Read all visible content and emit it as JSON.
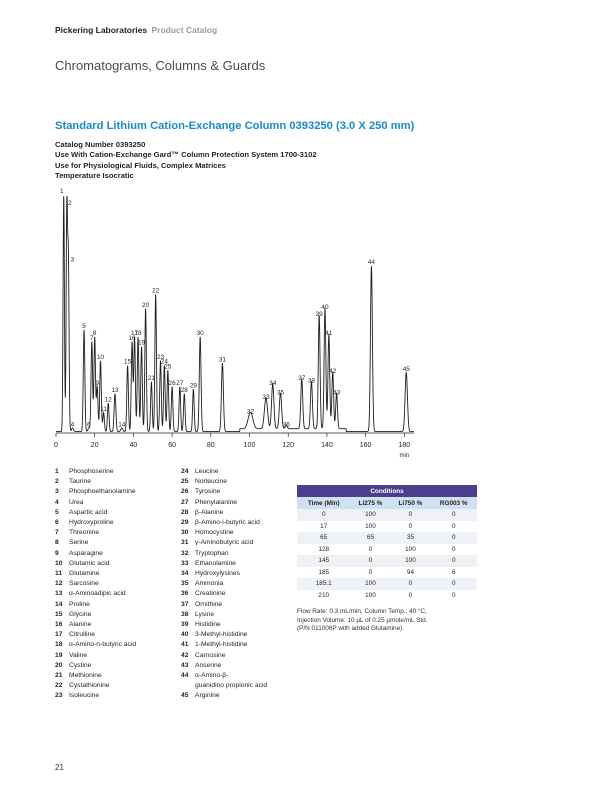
{
  "header": {
    "company": "Pickering Laboratories",
    "catalog": "Product Catalog"
  },
  "section_title": "Chromatograms, Columns & Guards",
  "column_title": "Standard Lithium Cation-Exchange Column 0393250 (3.0 X 250 mm)",
  "info_lines": [
    "Catalog Number 0393250",
    "Use With Cation-Exchange Gard™ Column Protection System 1700-3102",
    "Use for Physiological Fluids, Complex Matrices",
    "Temperature Isocratic"
  ],
  "chart_data": {
    "type": "line",
    "x_unit": "min",
    "xlim": [
      0,
      185
    ],
    "x_ticks": [
      0,
      20,
      40,
      60,
      80,
      100,
      120,
      140,
      160,
      180
    ],
    "ylim": [
      0,
      100
    ],
    "grid": false,
    "line_color": "#231f20",
    "peaks": [
      {
        "label": "1",
        "t": 4.0,
        "h": 100,
        "w": 0.35
      },
      {
        "label": "2",
        "t": 5.6,
        "h": 95,
        "w": 0.35
      },
      {
        "label": "3",
        "t": 6.4,
        "h": 71,
        "w": 0.35
      },
      {
        "label": "4",
        "t": 8.5,
        "h": 1.5,
        "w": 0.5
      },
      {
        "label": "5",
        "t": 14.5,
        "h": 43,
        "w": 0.4
      },
      {
        "label": "6",
        "t": 17.0,
        "h": 1.5,
        "w": 0.5
      },
      {
        "label": "7",
        "t": 18.5,
        "h": 38,
        "w": 0.4
      },
      {
        "label": "8",
        "t": 20.0,
        "h": 40,
        "w": 0.4
      },
      {
        "label": "9",
        "t": 21.3,
        "h": 19,
        "w": 0.4
      },
      {
        "label": "10",
        "t": 23.0,
        "h": 30,
        "w": 0.4
      },
      {
        "label": "11",
        "t": 24.6,
        "h": 8,
        "w": 0.4
      },
      {
        "label": "12",
        "t": 27.0,
        "h": 12,
        "w": 0.4
      },
      {
        "label": "13",
        "t": 30.5,
        "h": 16,
        "w": 0.45
      },
      {
        "label": "14",
        "t": 34.0,
        "h": 1.5,
        "w": 0.5
      },
      {
        "label": "15",
        "t": 37.0,
        "h": 28,
        "w": 0.4
      },
      {
        "label": "16",
        "t": 39.3,
        "h": 38,
        "w": 0.4
      },
      {
        "label": "17",
        "t": 40.6,
        "h": 40,
        "w": 0.4
      },
      {
        "label": "18",
        "t": 42.4,
        "h": 40,
        "w": 0.4
      },
      {
        "label": "19",
        "t": 44.2,
        "h": 36,
        "w": 0.4
      },
      {
        "label": "20",
        "t": 46.3,
        "h": 52,
        "w": 0.4
      },
      {
        "label": "21",
        "t": 49.3,
        "h": 21,
        "w": 0.4
      },
      {
        "label": "22",
        "t": 51.5,
        "h": 58,
        "w": 0.4
      },
      {
        "label": "23",
        "t": 54.0,
        "h": 30,
        "w": 0.4
      },
      {
        "label": "24",
        "t": 56.0,
        "h": 28,
        "w": 0.4
      },
      {
        "label": "25",
        "t": 57.8,
        "h": 26,
        "w": 0.4
      },
      {
        "label": "26",
        "t": 60.0,
        "h": 19,
        "w": 0.4
      },
      {
        "label": "27",
        "t": 64.0,
        "h": 19,
        "w": 0.4
      },
      {
        "label": "28",
        "t": 66.3,
        "h": 16,
        "w": 0.4
      },
      {
        "label": "29",
        "t": 71.0,
        "h": 18,
        "w": 0.4
      },
      {
        "label": "30",
        "t": 74.5,
        "h": 40,
        "w": 0.45
      },
      {
        "label": "31",
        "t": 86.0,
        "h": 29,
        "w": 0.5
      },
      {
        "label": "32",
        "t": 100.5,
        "h": 7,
        "w": 1.2
      },
      {
        "label": "33",
        "t": 108.5,
        "h": 13,
        "w": 0.8
      },
      {
        "label": "34",
        "t": 112.0,
        "h": 19,
        "w": 0.6
      },
      {
        "label": "35",
        "t": 116.0,
        "h": 15,
        "w": 0.6
      },
      {
        "label": "36",
        "t": 119.0,
        "h": 1.5,
        "w": 0.5
      },
      {
        "label": "37",
        "t": 127.0,
        "h": 21,
        "w": 0.5
      },
      {
        "label": "38",
        "t": 132.0,
        "h": 20,
        "w": 0.5
      },
      {
        "label": "39",
        "t": 136.0,
        "h": 48,
        "w": 0.45
      },
      {
        "label": "40",
        "t": 139.0,
        "h": 51,
        "w": 0.45
      },
      {
        "label": "41",
        "t": 141.0,
        "h": 40,
        "w": 0.45
      },
      {
        "label": "42",
        "t": 143.0,
        "h": 24,
        "w": 0.45
      },
      {
        "label": "43",
        "t": 145.0,
        "h": 15,
        "w": 0.45
      },
      {
        "label": "44",
        "t": 163.0,
        "h": 70,
        "w": 0.5
      },
      {
        "label": "45",
        "t": 181.0,
        "h": 25,
        "w": 0.6
      }
    ]
  },
  "compounds_col1": [
    {
      "n": "1",
      "name": "Phosphoserine"
    },
    {
      "n": "2",
      "name": "Taurine"
    },
    {
      "n": "3",
      "name": "Phosphoethanolamine"
    },
    {
      "n": "4",
      "name": "Urea"
    },
    {
      "n": "5",
      "name": "Aspartic acid"
    },
    {
      "n": "6",
      "name": "Hydroxyproline"
    },
    {
      "n": "7",
      "name": "Threonine"
    },
    {
      "n": "8",
      "name": "Serine"
    },
    {
      "n": "9",
      "name": "Asparagine"
    },
    {
      "n": "10",
      "name": "Glutamic acid"
    },
    {
      "n": "11",
      "name": "Glutamine"
    },
    {
      "n": "12",
      "name": "Sarcosine"
    },
    {
      "n": "13",
      "name": "α-Aminoadipic acid"
    },
    {
      "n": "14",
      "name": "Proline"
    },
    {
      "n": "15",
      "name": "Glycine"
    },
    {
      "n": "16",
      "name": "Alanine"
    },
    {
      "n": "17",
      "name": "Citrulline"
    },
    {
      "n": "18",
      "name": "α-Amino-n-butyric acid"
    },
    {
      "n": "19",
      "name": "Valine"
    },
    {
      "n": "20",
      "name": "Cystine"
    },
    {
      "n": "21",
      "name": "Methionine"
    },
    {
      "n": "22",
      "name": "Cystathionine"
    },
    {
      "n": "23",
      "name": "Isoleucine"
    }
  ],
  "compounds_col2": [
    {
      "n": "24",
      "name": "Leucine"
    },
    {
      "n": "25",
      "name": "Norleucine"
    },
    {
      "n": "26",
      "name": "Tyrosine"
    },
    {
      "n": "27",
      "name": "Phenylalanine"
    },
    {
      "n": "28",
      "name": "β-Alanine"
    },
    {
      "n": "29",
      "name": "β-Amino-i-butyric acid"
    },
    {
      "n": "30",
      "name": "Homocystine"
    },
    {
      "n": "31",
      "name": "γ-Aminobutyric acid"
    },
    {
      "n": "32",
      "name": "Tryptophan"
    },
    {
      "n": "33",
      "name": "Ethanolamine"
    },
    {
      "n": "34",
      "name": "Hydroxylysines"
    },
    {
      "n": "35",
      "name": "Ammonia"
    },
    {
      "n": "36",
      "name": "Creatinine"
    },
    {
      "n": "37",
      "name": "Ornithine"
    },
    {
      "n": "38",
      "name": "Lysine"
    },
    {
      "n": "39",
      "name": "Histidine"
    },
    {
      "n": "40",
      "name": "3-Methyl-histidine"
    },
    {
      "n": "41",
      "name": "1-Methyl-histidine"
    },
    {
      "n": "42",
      "name": "Carnosine"
    },
    {
      "n": "43",
      "name": "Anserine"
    },
    {
      "n": "44",
      "name": "α-Amino-β-"
    },
    {
      "n": "",
      "name": "guanidino propionic acid"
    },
    {
      "n": "45",
      "name": "Arginine"
    }
  ],
  "conditions": {
    "title": "Conditions",
    "headers": [
      "Time (Min)",
      "Li275 %",
      "Li750 %",
      "RG003 %"
    ],
    "rows": [
      [
        "0",
        "100",
        "0",
        "0"
      ],
      [
        "17",
        "100",
        "0",
        "0"
      ],
      [
        "65",
        "65",
        "35",
        "0"
      ],
      [
        "128",
        "0",
        "100",
        "0"
      ],
      [
        "145",
        "0",
        "100",
        "0"
      ],
      [
        "185",
        "0",
        "94",
        "6"
      ],
      [
        "185.1",
        "100",
        "0",
        "0"
      ],
      [
        "210",
        "100",
        "0",
        "0"
      ]
    ],
    "accent_color": "#4a3f8c",
    "header_color": "#cfe0f0"
  },
  "notes": [
    "Flow Rate: 0.3 mL/min, Column Temp.: 40 °C,",
    "Injection Volume: 10 µL of 0.25 µmole/mL Std.",
    "(P/N 011006P with added Glutamine)"
  ],
  "page_number": "21"
}
